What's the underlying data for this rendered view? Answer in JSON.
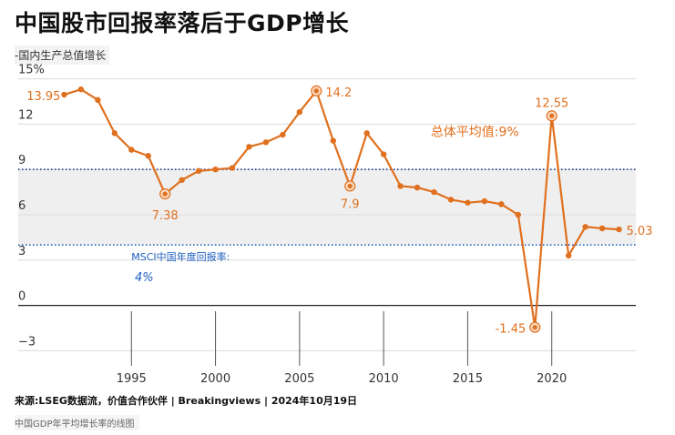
{
  "header": {
    "title": "中国股市回报率落后于GDP增长",
    "subtitle": "-国内生产总值增长"
  },
  "footer": {
    "source": "来源:LSEG数据流，价值合作伙伴 | Breakingviews | 2024年10月19日",
    "caption": "中国GDP年平均增长率的线图"
  },
  "colors": {
    "line": "#e0701e",
    "band": "#efefef",
    "avg_line": "#1f3f8f",
    "msci_line": "#1f5fc0",
    "annotation_blue": "#1f5fbf",
    "axis_text": "#333333",
    "grid": "#dcdcdc"
  },
  "chart_data": {
    "type": "line",
    "title": "中国股市回报率落后于GDP增长",
    "subtitle": "-国内生产总值增长",
    "xlim": [
      1990,
      2025
    ],
    "ylim": [
      -4,
      16
    ],
    "x_ticks": [
      1995,
      2000,
      2005,
      2010,
      2015,
      2020
    ],
    "x_tick_labels": [
      "1995",
      "2000",
      "2005",
      "2010",
      "2015",
      "2020"
    ],
    "y_ticks": [
      15,
      12,
      9,
      6,
      3,
      0,
      -3
    ],
    "y_tick_labels": [
      "15%",
      "12",
      "9",
      "6",
      "3",
      "0",
      "−3"
    ],
    "grid": "horizontal",
    "series": [
      {
        "x": [
          1991,
          1992,
          1993,
          1994,
          1995,
          1996,
          1997,
          1998,
          1999,
          2000,
          2001,
          2002,
          2003,
          2004,
          2005,
          2006,
          2007,
          2008,
          2009,
          2010,
          2011,
          2012,
          2013,
          2014,
          2015,
          2016,
          2017,
          2018,
          2019,
          2020,
          2021,
          2022,
          2023,
          2024
        ],
        "values": [
          13.95,
          14.3,
          13.6,
          11.4,
          10.3,
          9.9,
          7.38,
          8.3,
          8.9,
          9.0,
          9.1,
          10.5,
          10.8,
          11.3,
          12.8,
          14.2,
          10.9,
          7.9,
          11.4,
          10.0,
          7.9,
          7.8,
          7.5,
          7.0,
          6.8,
          6.9,
          6.7,
          6.0,
          -1.45,
          12.55,
          3.3,
          5.2,
          5.1,
          5.03
        ],
        "point_labels": [
          {
            "x": 1991,
            "text": "13.95"
          },
          {
            "x": 1997,
            "text": "7.38"
          },
          {
            "x": 2006,
            "text": "14.2"
          },
          {
            "x": 2008,
            "text": "7.9"
          },
          {
            "x": 2019,
            "text": "-1.45"
          },
          {
            "x": 2020,
            "text": "12.55"
          },
          {
            "x": 2024,
            "text": "5.03"
          }
        ],
        "highlighted_x": [
          1997,
          2006,
          2008,
          2019,
          2020
        ]
      }
    ],
    "band": {
      "from": 4,
      "to": 9
    },
    "reference_lines": [
      {
        "value": 9,
        "label": "总体平均值:9%",
        "style": "dotted"
      },
      {
        "value": 4,
        "label": "MSCI中国年度回报率:",
        "value_label": "4%",
        "style": "dotted"
      }
    ],
    "annotations": {
      "avg_label": "总体平均值:9%",
      "msci_label": "MSCI中国年度回报率:",
      "msci_value": "4%"
    }
  }
}
